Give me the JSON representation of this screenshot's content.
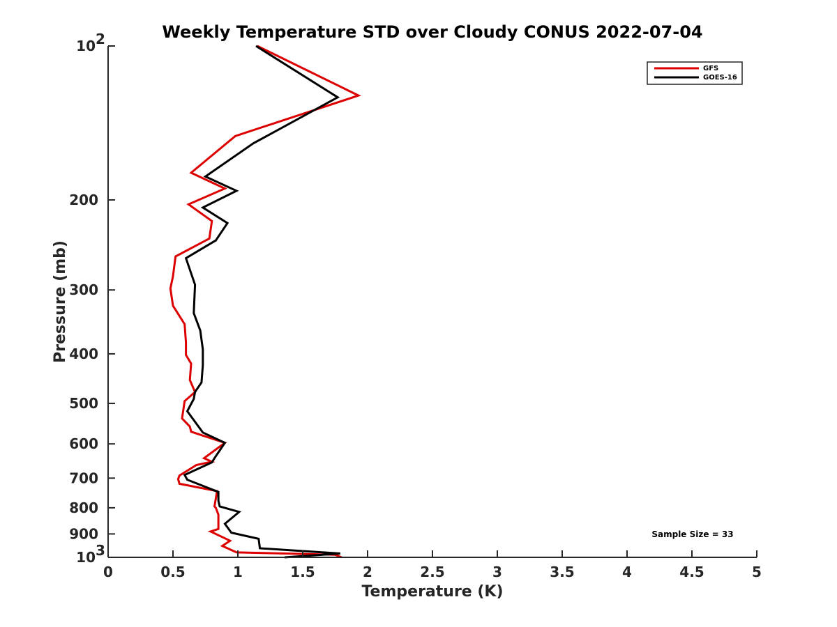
{
  "chart_data": {
    "type": "line",
    "title": "Weekly Temperature STD over Cloudy CONUS 2022-07-04",
    "xlabel": "Temperature (K)",
    "ylabel": "Pressure (mb)",
    "xlim": [
      0,
      5
    ],
    "ylim": [
      100,
      1000
    ],
    "yscale": "log",
    "yreverse": true,
    "grid": false,
    "legend_position": "top-right",
    "annotation": "Sample Size = 33",
    "x_ticks": [
      {
        "value": 0,
        "label": "0"
      },
      {
        "value": 0.5,
        "label": "0.5"
      },
      {
        "value": 1,
        "label": "1"
      },
      {
        "value": 1.5,
        "label": "1.5"
      },
      {
        "value": 2,
        "label": "2"
      },
      {
        "value": 2.5,
        "label": "2.5"
      },
      {
        "value": 3,
        "label": "3"
      },
      {
        "value": 3.5,
        "label": "3.5"
      },
      {
        "value": 4,
        "label": "4"
      },
      {
        "value": 4.5,
        "label": "4.5"
      },
      {
        "value": 5,
        "label": "5"
      }
    ],
    "y_ticks": [
      {
        "value": 100,
        "label": "10",
        "exponent": "2"
      },
      {
        "value": 200,
        "label": "200"
      },
      {
        "value": 300,
        "label": "300"
      },
      {
        "value": 400,
        "label": "400"
      },
      {
        "value": 500,
        "label": "500"
      },
      {
        "value": 600,
        "label": "600"
      },
      {
        "value": 700,
        "label": "700"
      },
      {
        "value": 800,
        "label": "800"
      },
      {
        "value": 900,
        "label": "900"
      },
      {
        "value": 1000,
        "label": "10",
        "exponent": "3"
      }
    ],
    "series": [
      {
        "name": "GFS",
        "color": "#dd0000",
        "points": [
          [
            1.15,
            100
          ],
          [
            1.93,
            125
          ],
          [
            0.98,
            150
          ],
          [
            0.64,
            177
          ],
          [
            0.9,
            190
          ],
          [
            0.62,
            204
          ],
          [
            0.8,
            220
          ],
          [
            0.78,
            238
          ],
          [
            0.52,
            258
          ],
          [
            0.5,
            282
          ],
          [
            0.48,
            298
          ],
          [
            0.5,
            322
          ],
          [
            0.59,
            350
          ],
          [
            0.6,
            380
          ],
          [
            0.6,
            402
          ],
          [
            0.64,
            418
          ],
          [
            0.63,
            450
          ],
          [
            0.67,
            475
          ],
          [
            0.59,
            495
          ],
          [
            0.57,
            535
          ],
          [
            0.63,
            555
          ],
          [
            0.64,
            568
          ],
          [
            0.9,
            597
          ],
          [
            0.74,
            640
          ],
          [
            0.8,
            650
          ],
          [
            0.68,
            660
          ],
          [
            0.55,
            692
          ],
          [
            0.54,
            703
          ],
          [
            0.55,
            718
          ],
          [
            0.84,
            742
          ],
          [
            0.82,
            795
          ],
          [
            0.83,
            800
          ],
          [
            0.85,
            825
          ],
          [
            0.85,
            880
          ],
          [
            0.79,
            890
          ],
          [
            0.94,
            928
          ],
          [
            0.88,
            950
          ],
          [
            0.99,
            978
          ],
          [
            1.75,
            988
          ],
          [
            1.8,
            1000
          ]
        ]
      },
      {
        "name": "GOES-16",
        "color": "#000000",
        "points": [
          [
            1.14,
            100
          ],
          [
            1.77,
            126
          ],
          [
            1.12,
            155
          ],
          [
            0.75,
            180
          ],
          [
            0.99,
            192
          ],
          [
            0.73,
            207
          ],
          [
            0.92,
            222
          ],
          [
            0.83,
            240
          ],
          [
            0.6,
            260
          ],
          [
            0.67,
            293
          ],
          [
            0.66,
            333
          ],
          [
            0.71,
            360
          ],
          [
            0.73,
            392
          ],
          [
            0.73,
            421
          ],
          [
            0.72,
            455
          ],
          [
            0.67,
            475
          ],
          [
            0.66,
            490
          ],
          [
            0.61,
            518
          ],
          [
            0.73,
            570
          ],
          [
            0.9,
            597
          ],
          [
            0.82,
            640
          ],
          [
            0.8,
            652
          ],
          [
            0.59,
            690
          ],
          [
            0.61,
            705
          ],
          [
            0.85,
            745
          ],
          [
            0.85,
            775
          ],
          [
            0.86,
            795
          ],
          [
            1.01,
            815
          ],
          [
            0.9,
            860
          ],
          [
            0.95,
            895
          ],
          [
            1.16,
            920
          ],
          [
            1.17,
            960
          ],
          [
            1.79,
            983
          ],
          [
            1.36,
            1000
          ]
        ]
      }
    ]
  }
}
